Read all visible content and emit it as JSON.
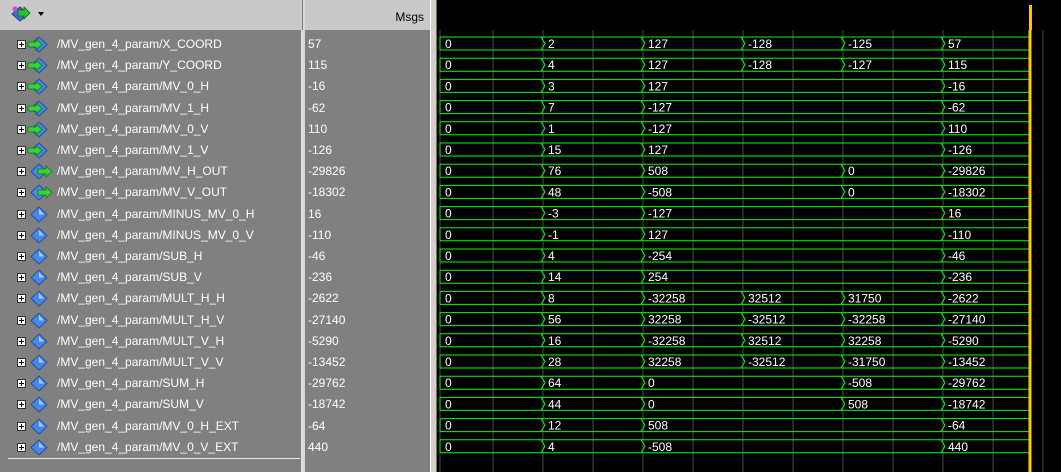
{
  "header": {
    "msgs_label": "Msgs",
    "toolbar_icon": "signal-group-icon",
    "dropdown_icon": "chevron-down-icon"
  },
  "signals": [
    {
      "name": "/MV_gen_4_param/X_COORD",
      "value": "57",
      "icon": "input-port-icon",
      "segments": [
        "0",
        "2",
        "127",
        "-128",
        "-125",
        "57"
      ]
    },
    {
      "name": "/MV_gen_4_param/Y_COORD",
      "value": "115",
      "icon": "input-port-icon",
      "segments": [
        "0",
        "4",
        "127",
        "-128",
        "-127",
        "115"
      ]
    },
    {
      "name": "/MV_gen_4_param/MV_0_H",
      "value": "-16",
      "icon": "input-port-icon",
      "segments": [
        "0",
        "3",
        "127",
        "",
        "",
        "-16"
      ]
    },
    {
      "name": "/MV_gen_4_param/MV_1_H",
      "value": "-62",
      "icon": "input-port-icon",
      "segments": [
        "0",
        "7",
        "-127",
        "",
        "",
        "-62"
      ]
    },
    {
      "name": "/MV_gen_4_param/MV_0_V",
      "value": "110",
      "icon": "input-port-icon",
      "segments": [
        "0",
        "1",
        "-127",
        "",
        "",
        "110"
      ]
    },
    {
      "name": "/MV_gen_4_param/MV_1_V",
      "value": "-126",
      "icon": "input-port-icon",
      "segments": [
        "0",
        "15",
        "127",
        "",
        "",
        "-126"
      ]
    },
    {
      "name": "/MV_gen_4_param/MV_H_OUT",
      "value": "-29826",
      "icon": "output-port-icon",
      "segments": [
        "0",
        "76",
        "508",
        "",
        "0",
        "-29826"
      ]
    },
    {
      "name": "/MV_gen_4_param/MV_V_OUT",
      "value": "-18302",
      "icon": "output-port-icon",
      "segments": [
        "0",
        "48",
        "-508",
        "",
        "0",
        "-18302"
      ]
    },
    {
      "name": "/MV_gen_4_param/MINUS_MV_0_H",
      "value": "16",
      "icon": "internal-signal-icon",
      "segments": [
        "0",
        "-3",
        "-127",
        "",
        "",
        "16"
      ]
    },
    {
      "name": "/MV_gen_4_param/MINUS_MV_0_V",
      "value": "-110",
      "icon": "internal-signal-icon",
      "segments": [
        "0",
        "-1",
        "127",
        "",
        "",
        "-110"
      ]
    },
    {
      "name": "/MV_gen_4_param/SUB_H",
      "value": "-46",
      "icon": "internal-signal-icon",
      "segments": [
        "0",
        "4",
        "-254",
        "",
        "",
        "-46"
      ]
    },
    {
      "name": "/MV_gen_4_param/SUB_V",
      "value": "-236",
      "icon": "internal-signal-icon",
      "segments": [
        "0",
        "14",
        "254",
        "",
        "",
        "-236"
      ]
    },
    {
      "name": "/MV_gen_4_param/MULT_H_H",
      "value": "-2622",
      "icon": "internal-signal-icon",
      "segments": [
        "0",
        "8",
        "-32258",
        "32512",
        "31750",
        "-2622"
      ]
    },
    {
      "name": "/MV_gen_4_param/MULT_H_V",
      "value": "-27140",
      "icon": "internal-signal-icon",
      "segments": [
        "0",
        "56",
        "32258",
        "-32512",
        "-32258",
        "-27140"
      ]
    },
    {
      "name": "/MV_gen_4_param/MULT_V_H",
      "value": "-5290",
      "icon": "internal-signal-icon",
      "segments": [
        "0",
        "16",
        "-32258",
        "32512",
        "32258",
        "-5290"
      ]
    },
    {
      "name": "/MV_gen_4_param/MULT_V_V",
      "value": "-13452",
      "icon": "internal-signal-icon",
      "segments": [
        "0",
        "28",
        "32258",
        "-32512",
        "-31750",
        "-13452"
      ]
    },
    {
      "name": "/MV_gen_4_param/SUM_H",
      "value": "-29762",
      "icon": "internal-signal-icon",
      "segments": [
        "0",
        "64",
        "0",
        "",
        "-508",
        "-29762"
      ]
    },
    {
      "name": "/MV_gen_4_param/SUM_V",
      "value": "-18742",
      "icon": "internal-signal-icon",
      "segments": [
        "0",
        "44",
        "0",
        "",
        "508",
        "-18742"
      ]
    },
    {
      "name": "/MV_gen_4_param/MV_0_H_EXT",
      "value": "-64",
      "icon": "internal-signal-icon",
      "segments": [
        "0",
        "12",
        "508",
        "",
        "",
        "-64"
      ]
    },
    {
      "name": "/MV_gen_4_param/MV_0_V_EXT",
      "value": "440",
      "icon": "internal-signal-icon",
      "segments": [
        "0",
        "4",
        "-508",
        "",
        "",
        "440"
      ]
    }
  ],
  "colors": {
    "wave": "#00ff00",
    "grid": "#4a4a4a",
    "cursor": "#ffc800",
    "pane": "#808080",
    "header": "#c9c9c9"
  }
}
